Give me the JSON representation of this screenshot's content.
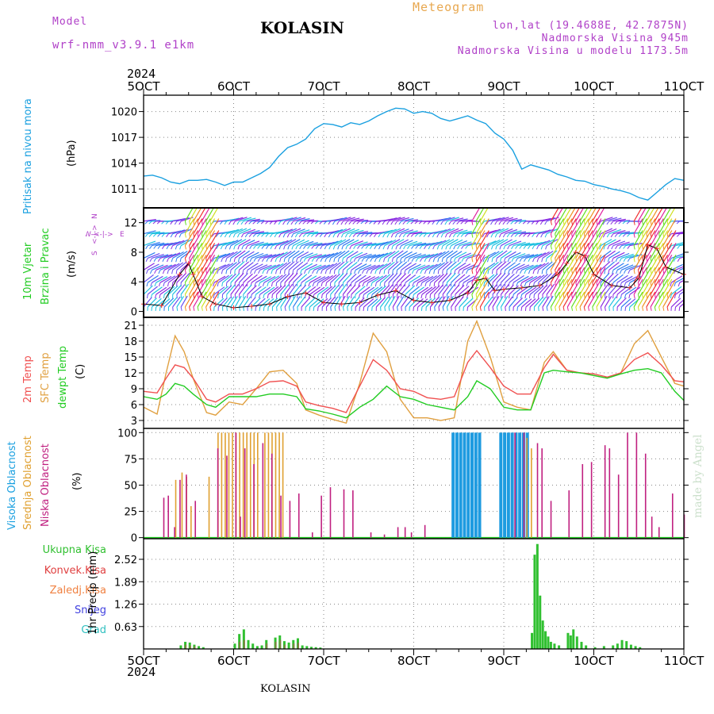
{
  "header": {
    "model_label": "Model",
    "model_name": "wrf-nmm_v3.9.1 e1km",
    "station": "KOLASIN",
    "title": "Meteogram",
    "lonlat": "lon,lat (19.4688E, 42.7875N)",
    "elevation": "Nadmorska Visina 945m",
    "model_elevation": "Nadmorska Visina u modelu 1173.5m",
    "year_top": "2024",
    "year_bottom": "2024",
    "footer_station": "KOLASIN",
    "watermark": "made by Angel"
  },
  "colors": {
    "pressure": "#1aa0e0",
    "temp2m": "#f05050",
    "sfc": "#e0a040",
    "dew": "#22cc22",
    "high_cloud": "#1e9be0",
    "mid_cloud": "#e0a030",
    "low_cloud": "#c02080",
    "total_precip": "#30c030",
    "conv_precip": "#e04040",
    "frozen_precip": "#f08040",
    "snow": "#4040e0",
    "hail": "#30c0c0",
    "wind_label": "#22cc22",
    "wind_dir": "#b040c8"
  },
  "chart_data": [
    {
      "type": "line",
      "panel": "pressure",
      "x_ticks": [
        "5OCT",
        "6OCT",
        "7OCT",
        "8OCT",
        "9OCT",
        "10OCT",
        "11OCT"
      ],
      "ylabel_lines": [
        "Pritisak na nivou mora",
        "(hPa)"
      ],
      "y_ticks": [
        1011,
        1014,
        1017,
        1020
      ],
      "ylim": [
        1008.8,
        1021.9
      ],
      "grid": true,
      "series": [
        {
          "x": [
            0,
            0.1,
            0.2,
            0.3,
            0.4,
            0.5,
            0.6,
            0.7,
            0.8,
            0.9,
            1.0,
            1.1,
            1.2,
            1.3,
            1.4,
            1.5,
            1.6,
            1.7,
            1.8,
            1.9,
            2.0,
            2.1,
            2.2,
            2.3,
            2.4,
            2.5,
            2.6,
            2.7,
            2.8,
            2.9,
            3.0,
            3.1,
            3.2,
            3.3,
            3.4,
            3.5,
            3.6,
            3.7,
            3.8,
            3.9,
            4.0,
            4.1,
            4.2,
            4.3,
            4.4,
            4.5,
            4.6,
            4.7,
            4.8,
            4.9,
            5.0,
            5.1,
            5.2,
            5.3,
            5.4,
            5.5,
            5.6,
            5.7,
            5.8,
            5.9,
            6.0
          ],
          "y": [
            1012.5,
            1012.6,
            1012.3,
            1011.8,
            1011.6,
            1012.0,
            1012.0,
            1012.1,
            1011.8,
            1011.4,
            1011.8,
            1011.8,
            1012.3,
            1012.8,
            1013.5,
            1014.8,
            1015.8,
            1016.2,
            1016.8,
            1018.0,
            1018.6,
            1018.5,
            1018.2,
            1018.7,
            1018.5,
            1018.9,
            1019.5,
            1020.0,
            1020.4,
            1020.3,
            1019.8,
            1020.0,
            1019.8,
            1019.2,
            1018.9,
            1019.2,
            1019.5,
            1019.0,
            1018.6,
            1017.5,
            1016.8,
            1015.5,
            1013.3,
            1013.8,
            1013.5,
            1013.2,
            1012.7,
            1012.4,
            1012.0,
            1011.9,
            1011.5,
            1011.3,
            1011.0,
            1010.8,
            1010.5,
            1010.0,
            1009.7,
            1010.6,
            1011.5,
            1012.2,
            1012.0
          ]
        }
      ]
    },
    {
      "type": "vector",
      "panel": "wind",
      "ylabel_lines": [
        "10m Vjetar",
        "Brzina i Pravac",
        "(m/s)"
      ],
      "y_ticks": [
        0,
        4,
        8,
        12
      ],
      "ylim": [
        -0.8,
        14.0
      ],
      "compass": {
        "n": "N",
        "s": "S",
        "e": "E",
        "w": "W"
      },
      "speed": {
        "x": [
          0,
          0.2,
          0.4,
          0.5,
          0.55,
          0.65,
          0.8,
          1.0,
          1.2,
          1.4,
          1.6,
          1.8,
          2.0,
          2.2,
          2.4,
          2.6,
          2.8,
          3.0,
          3.2,
          3.4,
          3.6,
          3.7,
          3.8,
          3.9,
          4.0,
          4.2,
          4.4,
          4.6,
          4.7,
          4.8,
          4.9,
          5.0,
          5.2,
          5.4,
          5.5,
          5.6,
          5.7,
          5.8,
          6.0
        ],
        "y": [
          1.0,
          0.8,
          5.0,
          6.5,
          5.0,
          2.0,
          1.0,
          0.5,
          0.7,
          1.0,
          2.0,
          2.5,
          1.2,
          1.0,
          1.2,
          2.2,
          2.8,
          1.5,
          1.2,
          1.5,
          2.5,
          4.2,
          4.5,
          2.8,
          3.0,
          3.2,
          3.5,
          5.0,
          6.5,
          8.0,
          7.5,
          5.0,
          3.5,
          3.2,
          4.5,
          9.0,
          8.5,
          6.0,
          5.0
        ]
      }
    },
    {
      "type": "line",
      "panel": "temperature",
      "ylabel_lines": [
        "2m Temp",
        "SFC Temp",
        "dewpt Temp",
        "(C)"
      ],
      "y_ticks": [
        3,
        6,
        9,
        12,
        15,
        18,
        21
      ],
      "ylim": [
        1.5,
        22.5
      ],
      "grid": true,
      "series": [
        {
          "name": "2m Temp",
          "x": [
            0,
            0.15,
            0.25,
            0.35,
            0.45,
            0.55,
            0.7,
            0.8,
            0.95,
            1.1,
            1.25,
            1.4,
            1.55,
            1.7,
            1.8,
            1.95,
            2.1,
            2.25,
            2.4,
            2.55,
            2.7,
            2.85,
            3.0,
            3.15,
            3.3,
            3.45,
            3.6,
            3.7,
            3.85,
            4.0,
            4.15,
            4.3,
            4.45,
            4.55,
            4.7,
            4.85,
            5.0,
            5.15,
            5.3,
            5.45,
            5.6,
            5.75,
            5.9,
            6.0
          ],
          "y": [
            8.5,
            8.2,
            11.0,
            13.5,
            13.0,
            11.0,
            7.0,
            6.5,
            8.0,
            8.0,
            9.0,
            10.3,
            10.5,
            9.5,
            6.5,
            5.8,
            5.3,
            4.5,
            9.5,
            14.5,
            12.5,
            9.0,
            8.5,
            7.3,
            7.0,
            7.5,
            14.0,
            16.2,
            13.0,
            9.5,
            8.0,
            8.0,
            13.0,
            15.5,
            12.5,
            12.0,
            11.8,
            11.2,
            12.0,
            14.5,
            15.8,
            13.5,
            10.5,
            10.3
          ]
        },
        {
          "name": "SFC Temp",
          "x": [
            0,
            0.15,
            0.25,
            0.35,
            0.45,
            0.55,
            0.7,
            0.8,
            0.95,
            1.1,
            1.25,
            1.4,
            1.55,
            1.7,
            1.8,
            1.95,
            2.1,
            2.25,
            2.4,
            2.55,
            2.7,
            2.85,
            3.0,
            3.15,
            3.3,
            3.45,
            3.6,
            3.7,
            3.85,
            4.0,
            4.15,
            4.3,
            4.45,
            4.55,
            4.7,
            4.85,
            5.0,
            5.15,
            5.3,
            5.45,
            5.6,
            5.75,
            5.9,
            6.0
          ],
          "y": [
            5.5,
            4.2,
            12.0,
            19.0,
            16.0,
            11.0,
            4.5,
            4.0,
            6.5,
            6.0,
            9.0,
            12.2,
            12.5,
            10.0,
            5.0,
            4.0,
            3.2,
            2.5,
            10.0,
            19.5,
            16.0,
            7.0,
            3.5,
            3.5,
            3.0,
            3.5,
            18.0,
            21.8,
            15.0,
            6.5,
            5.5,
            5.0,
            14.0,
            16.0,
            12.5,
            12.0,
            11.5,
            11.0,
            12.0,
            17.5,
            20.0,
            15.0,
            10.0,
            9.5
          ]
        },
        {
          "name": "dewpt Temp",
          "x": [
            0,
            0.15,
            0.25,
            0.35,
            0.45,
            0.55,
            0.7,
            0.8,
            0.95,
            1.1,
            1.25,
            1.4,
            1.55,
            1.7,
            1.8,
            1.95,
            2.1,
            2.25,
            2.4,
            2.55,
            2.7,
            2.85,
            3.0,
            3.15,
            3.3,
            3.45,
            3.6,
            3.7,
            3.85,
            4.0,
            4.15,
            4.3,
            4.45,
            4.55,
            4.7,
            4.85,
            5.0,
            5.15,
            5.3,
            5.45,
            5.6,
            5.75,
            5.9,
            6.0
          ],
          "y": [
            7.5,
            7.0,
            8.0,
            10.0,
            9.5,
            8.0,
            6.0,
            5.5,
            7.5,
            7.5,
            7.5,
            8.0,
            8.0,
            7.5,
            5.2,
            4.8,
            4.2,
            3.5,
            5.5,
            7.0,
            9.5,
            7.5,
            7.0,
            6.0,
            5.5,
            5.0,
            7.5,
            10.5,
            9.0,
            5.5,
            5.0,
            5.0,
            12.0,
            12.5,
            12.2,
            12.0,
            11.5,
            11.0,
            11.8,
            12.5,
            12.8,
            12.0,
            8.5,
            6.8
          ]
        }
      ]
    },
    {
      "type": "bar",
      "panel": "cloud",
      "ylabel_lines": [
        "Visoka Oblacnost",
        "Srednja Oblacnost",
        "Niska Oblacnost",
        "(%)"
      ],
      "y_ticks": [
        0,
        25,
        50,
        75,
        100
      ],
      "ylim": [
        -1,
        104
      ],
      "grid": true,
      "high_bands": [
        [
          3.42,
          3.75
        ],
        [
          3.95,
          4.25
        ]
      ],
      "mid_bars": {
        "x": [
          0.35,
          0.42,
          0.47,
          0.52,
          0.72,
          0.82,
          0.86,
          0.9,
          0.94,
          0.98,
          1.02,
          1.06,
          1.1,
          1.14,
          1.18,
          1.22,
          1.26,
          1.34,
          1.38,
          1.42,
          1.46,
          1.5,
          1.54,
          4.25,
          4.3
        ],
        "y": [
          55,
          62,
          58,
          30,
          58,
          100,
          100,
          100,
          100,
          100,
          100,
          100,
          100,
          100,
          100,
          100,
          100,
          100,
          100,
          100,
          100,
          100,
          100,
          95,
          85
        ]
      },
      "low_bars": {
        "x": [
          0.2,
          0.25,
          0.32,
          0.38,
          0.45,
          0.55,
          0.8,
          0.9,
          1.0,
          1.05,
          1.1,
          1.2,
          1.3,
          1.4,
          1.5,
          1.6,
          1.7,
          1.85,
          1.95,
          2.05,
          2.2,
          2.3,
          2.5,
          2.65,
          2.8,
          2.88,
          2.95,
          3.1,
          4.1,
          4.2,
          4.35,
          4.4,
          4.5,
          4.7,
          4.85,
          4.95,
          5.1,
          5.15,
          5.25,
          5.35,
          5.45,
          5.55,
          5.62,
          5.7,
          5.85,
          5.98
        ],
        "y": [
          38,
          40,
          10,
          55,
          60,
          35,
          85,
          78,
          100,
          20,
          85,
          70,
          90,
          80,
          40,
          35,
          42,
          5,
          40,
          48,
          46,
          45,
          5,
          3,
          10,
          10,
          5,
          12,
          100,
          100,
          90,
          85,
          35,
          45,
          70,
          72,
          88,
          85,
          60,
          100,
          100,
          80,
          20,
          10,
          42,
          22
        ]
      }
    },
    {
      "type": "bar",
      "panel": "precip",
      "ylabel_lines": [
        "1hr Precip (mm)"
      ],
      "legend": [
        "Ukupna Kisa",
        "Konvek.Kisa",
        "Zaledj.Kisa",
        "Snijeg",
        "Grad"
      ],
      "y_ticks": [
        0.63,
        1.26,
        1.89,
        2.52
      ],
      "ylim": [
        0,
        3.1
      ],
      "grid": true,
      "total": {
        "x": [
          0.4,
          0.45,
          0.5,
          0.55,
          0.6,
          0.65,
          1.0,
          1.05,
          1.1,
          1.15,
          1.2,
          1.25,
          1.3,
          1.35,
          1.45,
          1.5,
          1.55,
          1.6,
          1.65,
          1.7,
          1.75,
          1.8,
          1.85,
          1.9,
          1.95,
          4.3,
          4.33,
          4.36,
          4.39,
          4.42,
          4.45,
          4.48,
          4.51,
          4.55,
          4.6,
          4.7,
          4.73,
          4.76,
          4.8,
          4.85,
          4.9,
          5.0,
          5.1,
          5.2,
          5.25,
          5.3,
          5.35,
          5.4,
          5.45,
          5.5
        ],
        "y": [
          0.1,
          0.2,
          0.18,
          0.12,
          0.08,
          0.05,
          0.15,
          0.42,
          0.55,
          0.25,
          0.15,
          0.08,
          0.1,
          0.25,
          0.32,
          0.38,
          0.22,
          0.18,
          0.25,
          0.3,
          0.1,
          0.08,
          0.06,
          0.05,
          0.04,
          0.45,
          2.65,
          2.95,
          1.5,
          0.8,
          0.5,
          0.35,
          0.2,
          0.15,
          0.1,
          0.45,
          0.38,
          0.55,
          0.35,
          0.2,
          0.1,
          0.05,
          0.08,
          0.1,
          0.15,
          0.25,
          0.22,
          0.12,
          0.08,
          0.05
        ]
      },
      "conv": {
        "x": [
          0.45,
          0.5,
          0.55,
          1.05,
          1.1,
          1.35,
          1.45,
          1.5,
          1.55,
          1.65,
          1.7
        ],
        "y": [
          0.12,
          0.1,
          0.08,
          0.2,
          0.25,
          0.15,
          0.2,
          0.25,
          0.12,
          0.15,
          0.18
        ]
      }
    }
  ]
}
